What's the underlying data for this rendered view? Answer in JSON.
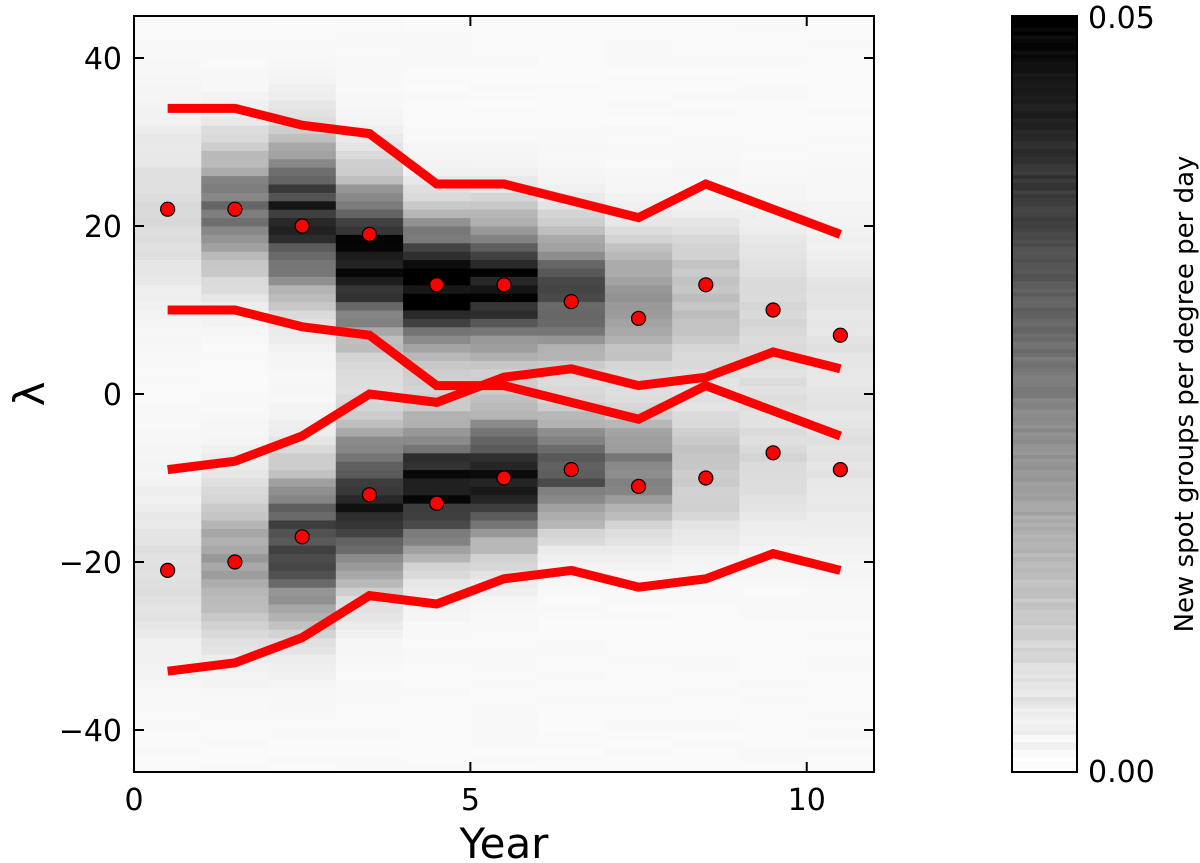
{
  "chart_data": {
    "type": "heatmap",
    "xlabel": "Year",
    "ylabel": "λ",
    "xlim": [
      0,
      11
    ],
    "ylim": [
      -45,
      45
    ],
    "x_ticks": [
      {
        "value": 0,
        "label": "0"
      },
      {
        "value": 5,
        "label": "5"
      },
      {
        "value": 10,
        "label": "10"
      }
    ],
    "y_ticks": [
      {
        "value": 40,
        "label": "40"
      },
      {
        "value": 20,
        "label": "20"
      },
      {
        "value": 0,
        "label": "0"
      },
      {
        "value": -20,
        "label": "−20"
      },
      {
        "value": -40,
        "label": "−40"
      }
    ],
    "colorbar": {
      "label": "New spot groups per degree per day",
      "min": 0.0,
      "max": 0.05,
      "min_label": "0.00",
      "max_label": "0.05",
      "colormap": "gray_r"
    },
    "heatmap_columns": [
      {
        "x": 0.5,
        "north": {
          "center": 22,
          "peak": 0.006,
          "width": 9
        },
        "south": {
          "center": -21,
          "peak": 0.005,
          "width": 9
        }
      },
      {
        "x": 1.5,
        "north": {
          "center": 22,
          "peak": 0.025,
          "width": 7
        },
        "south": {
          "center": -20,
          "peak": 0.018,
          "width": 8
        }
      },
      {
        "x": 2.5,
        "north": {
          "center": 21,
          "peak": 0.04,
          "width": 8
        },
        "south": {
          "center": -18,
          "peak": 0.035,
          "width": 8
        }
      },
      {
        "x": 3.5,
        "north": {
          "center": 16,
          "peak": 0.046,
          "width": 8
        },
        "south": {
          "center": -13,
          "peak": 0.042,
          "width": 8
        }
      },
      {
        "x": 4.5,
        "north": {
          "center": 13,
          "peak": 0.05,
          "width": 7
        },
        "south": {
          "center": -11,
          "peak": 0.044,
          "width": 7
        }
      },
      {
        "x": 5.5,
        "north": {
          "center": 13,
          "peak": 0.044,
          "width": 7
        },
        "south": {
          "center": -10,
          "peak": 0.042,
          "width": 7
        }
      },
      {
        "x": 6.5,
        "north": {
          "center": 12,
          "peak": 0.032,
          "width": 7
        },
        "south": {
          "center": -9,
          "peak": 0.032,
          "width": 6
        }
      },
      {
        "x": 7.5,
        "north": {
          "center": 11,
          "peak": 0.02,
          "width": 7
        },
        "south": {
          "center": -9,
          "peak": 0.024,
          "width": 6
        }
      },
      {
        "x": 8.5,
        "north": {
          "center": 11,
          "peak": 0.012,
          "width": 8
        },
        "south": {
          "center": -9,
          "peak": 0.01,
          "width": 7
        }
      },
      {
        "x": 9.5,
        "north": {
          "center": 10,
          "peak": 0.007,
          "width": 9
        },
        "south": {
          "center": -8,
          "peak": 0.006,
          "width": 8
        }
      },
      {
        "x": 10.5,
        "north": {
          "center": 9,
          "peak": 0.004,
          "width": 10
        },
        "south": {
          "center": -8,
          "peak": 0.004,
          "width": 9
        }
      }
    ],
    "series": [
      {
        "name": "north-mean",
        "kind": "points",
        "color": "#ff0000",
        "x": [
          0.5,
          1.5,
          2.5,
          3.5,
          4.5,
          5.5,
          6.5,
          7.5,
          8.5,
          9.5,
          10.5
        ],
        "y": [
          22,
          22,
          20,
          19,
          13,
          13,
          11,
          9,
          13,
          10,
          7
        ]
      },
      {
        "name": "south-mean",
        "kind": "points",
        "color": "#ff0000",
        "x": [
          0.5,
          1.5,
          2.5,
          3.5,
          4.5,
          5.5,
          6.5,
          7.5,
          8.5,
          9.5,
          10.5
        ],
        "y": [
          -21,
          -20,
          -17,
          -12,
          -13,
          -10,
          -9,
          -11,
          -10,
          -7,
          -9
        ]
      },
      {
        "name": "north-upper-bound",
        "kind": "line",
        "color": "#ff0000",
        "x": [
          0.5,
          1.5,
          2.5,
          3.5,
          4.5,
          5.5,
          6.5,
          7.5,
          8.5,
          9.5,
          10.5
        ],
        "y": [
          34,
          34,
          32,
          31,
          25,
          25,
          23,
          21,
          25,
          22,
          19
        ]
      },
      {
        "name": "north-lower-bound",
        "kind": "line",
        "color": "#ff0000",
        "x": [
          0.5,
          1.5,
          2.5,
          3.5,
          4.5,
          5.5,
          6.5,
          7.5,
          8.5,
          9.5,
          10.5
        ],
        "y": [
          10,
          10,
          8,
          7,
          1,
          1,
          -1,
          -3,
          1,
          -2,
          -5
        ]
      },
      {
        "name": "south-upper-bound",
        "kind": "line",
        "color": "#ff0000",
        "x": [
          0.5,
          1.5,
          2.5,
          3.5,
          4.5,
          5.5,
          6.5,
          7.5,
          8.5,
          9.5,
          10.5
        ],
        "y": [
          -9,
          -8,
          -5,
          0,
          -1,
          2,
          3,
          1,
          2,
          5,
          3
        ]
      },
      {
        "name": "south-lower-bound",
        "kind": "line",
        "color": "#ff0000",
        "x": [
          0.5,
          1.5,
          2.5,
          3.5,
          4.5,
          5.5,
          6.5,
          7.5,
          8.5,
          9.5,
          10.5
        ],
        "y": [
          -33,
          -32,
          -29,
          -24,
          -25,
          -22,
          -21,
          -23,
          -22,
          -19,
          -21
        ]
      }
    ]
  }
}
